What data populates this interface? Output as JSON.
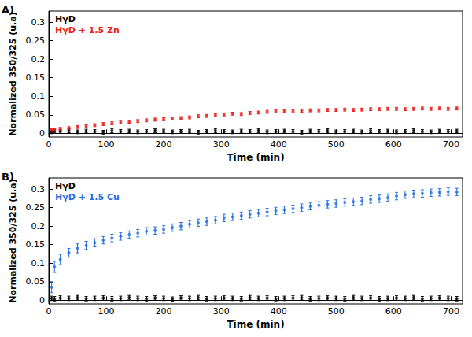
{
  "chart_data": [
    {
      "type": "scatter",
      "title": "A)",
      "x_label": "Time (min)",
      "y_label": "Normalized 350/325 (u.a)",
      "xlim": [
        0,
        720
      ],
      "xticks": [
        0,
        100,
        200,
        300,
        400,
        500,
        600,
        700
      ],
      "ylim": [
        -0.01,
        0.33
      ],
      "yticks": [
        0,
        0.05,
        0.1,
        0.15,
        0.2,
        0.25,
        0.3
      ],
      "grid": false,
      "legend": "upper left",
      "x": [
        5,
        10,
        20,
        35,
        50,
        65,
        80,
        95,
        110,
        125,
        140,
        155,
        170,
        185,
        200,
        215,
        230,
        245,
        260,
        275,
        290,
        305,
        320,
        335,
        350,
        365,
        380,
        395,
        410,
        425,
        440,
        455,
        470,
        485,
        500,
        515,
        530,
        545,
        560,
        575,
        590,
        605,
        620,
        635,
        650,
        665,
        680,
        695,
        710
      ],
      "series": [
        {
          "name": "HγD",
          "color": "#000000",
          "marker": "circle",
          "values": [
            0.004,
            0.006,
            0.005,
            0.007,
            0.004,
            0.006,
            0.005,
            0.003,
            0.007,
            0.005,
            0.006,
            0.004,
            0.005,
            0.007,
            0.006,
            0.004,
            0.005,
            0.006,
            0.003,
            0.005,
            0.007,
            0.005,
            0.004,
            0.006,
            0.005,
            0.007,
            0.004,
            0.005,
            0.006,
            0.005,
            0.003,
            0.006,
            0.005,
            0.007,
            0.004,
            0.005,
            0.006,
            0.004,
            0.007,
            0.005,
            0.006,
            0.004,
            0.005,
            0.007,
            0.005,
            0.004,
            0.006,
            0.005,
            0.006
          ],
          "errors": [
            0.005,
            0.005,
            0.005,
            0.005,
            0.005,
            0.005,
            0.005,
            0.005,
            0.005,
            0.005,
            0.005,
            0.005,
            0.005,
            0.005,
            0.005,
            0.005,
            0.005,
            0.005,
            0.005,
            0.005,
            0.005,
            0.005,
            0.005,
            0.005,
            0.005,
            0.005,
            0.005,
            0.005,
            0.005,
            0.005,
            0.005,
            0.005,
            0.005,
            0.005,
            0.005,
            0.005,
            0.005,
            0.005,
            0.005,
            0.005,
            0.005,
            0.005,
            0.005,
            0.005,
            0.005,
            0.005,
            0.005,
            0.005,
            0.005
          ]
        },
        {
          "name": "HγD + 1.5 Zn",
          "color": "#e8231e",
          "marker": "circle",
          "values": [
            0.008,
            0.009,
            0.012,
            0.014,
            0.017,
            0.019,
            0.022,
            0.025,
            0.027,
            0.029,
            0.031,
            0.033,
            0.035,
            0.037,
            0.038,
            0.04,
            0.041,
            0.043,
            0.046,
            0.047,
            0.049,
            0.051,
            0.053,
            0.052,
            0.055,
            0.056,
            0.058,
            0.059,
            0.06,
            0.06,
            0.061,
            0.062,
            0.062,
            0.063,
            0.063,
            0.064,
            0.063,
            0.064,
            0.065,
            0.065,
            0.066,
            0.066,
            0.065,
            0.066,
            0.067,
            0.066,
            0.067,
            0.066,
            0.067
          ],
          "errors": [
            0.004,
            0.004,
            0.004,
            0.004,
            0.004,
            0.004,
            0.004,
            0.004,
            0.004,
            0.004,
            0.004,
            0.004,
            0.004,
            0.004,
            0.004,
            0.004,
            0.004,
            0.004,
            0.004,
            0.004,
            0.004,
            0.004,
            0.004,
            0.004,
            0.004,
            0.004,
            0.004,
            0.004,
            0.004,
            0.004,
            0.004,
            0.004,
            0.004,
            0.004,
            0.004,
            0.004,
            0.004,
            0.004,
            0.004,
            0.004,
            0.004,
            0.004,
            0.004,
            0.004,
            0.004,
            0.004,
            0.004,
            0.004,
            0.004
          ]
        }
      ]
    },
    {
      "type": "scatter",
      "title": "B)",
      "x_label": "Time (min)",
      "y_label": "Normalized 350/325 (u.a)",
      "xlim": [
        0,
        720
      ],
      "xticks": [
        0,
        100,
        200,
        300,
        400,
        500,
        600,
        700
      ],
      "ylim": [
        -0.01,
        0.33
      ],
      "yticks": [
        0,
        0.05,
        0.1,
        0.15,
        0.2,
        0.25,
        0.3
      ],
      "grid": false,
      "legend": "upper left",
      "x": [
        5,
        10,
        20,
        35,
        50,
        65,
        80,
        95,
        110,
        125,
        140,
        155,
        170,
        185,
        200,
        215,
        230,
        245,
        260,
        275,
        290,
        305,
        320,
        335,
        350,
        365,
        380,
        395,
        410,
        425,
        440,
        455,
        470,
        485,
        500,
        515,
        530,
        545,
        560,
        575,
        590,
        605,
        620,
        635,
        650,
        665,
        680,
        695,
        710
      ],
      "series": [
        {
          "name": "HγD",
          "color": "#000000",
          "marker": "circle",
          "values": [
            0.005,
            0.004,
            0.006,
            0.005,
            0.007,
            0.004,
            0.005,
            0.006,
            0.004,
            0.005,
            0.007,
            0.005,
            0.004,
            0.006,
            0.005,
            0.003,
            0.006,
            0.005,
            0.007,
            0.004,
            0.005,
            0.006,
            0.005,
            0.004,
            0.007,
            0.005,
            0.006,
            0.004,
            0.005,
            0.006,
            0.007,
            0.004,
            0.005,
            0.006,
            0.005,
            0.004,
            0.007,
            0.005,
            0.006,
            0.004,
            0.005,
            0.006,
            0.005,
            0.007,
            0.004,
            0.005,
            0.006,
            0.005,
            0.004
          ],
          "errors": [
            0.006,
            0.006,
            0.006,
            0.006,
            0.006,
            0.006,
            0.006,
            0.006,
            0.006,
            0.006,
            0.006,
            0.006,
            0.006,
            0.006,
            0.006,
            0.006,
            0.006,
            0.006,
            0.006,
            0.006,
            0.006,
            0.006,
            0.006,
            0.006,
            0.006,
            0.006,
            0.006,
            0.006,
            0.006,
            0.006,
            0.006,
            0.006,
            0.006,
            0.006,
            0.006,
            0.006,
            0.006,
            0.006,
            0.006,
            0.006,
            0.006,
            0.006,
            0.006,
            0.006,
            0.006,
            0.006,
            0.006,
            0.006,
            0.006
          ]
        },
        {
          "name": "HγD + 1.5 Cu",
          "color": "#1f6fe0",
          "marker": "circle",
          "values": [
            0.035,
            0.09,
            0.11,
            0.128,
            0.14,
            0.148,
            0.155,
            0.162,
            0.168,
            0.172,
            0.177,
            0.181,
            0.186,
            0.188,
            0.191,
            0.196,
            0.2,
            0.205,
            0.209,
            0.212,
            0.216,
            0.222,
            0.225,
            0.228,
            0.232,
            0.235,
            0.238,
            0.241,
            0.244,
            0.247,
            0.25,
            0.254,
            0.256,
            0.259,
            0.261,
            0.264,
            0.266,
            0.268,
            0.272,
            0.274,
            0.277,
            0.281,
            0.285,
            0.287,
            0.288,
            0.29,
            0.291,
            0.293,
            0.292
          ],
          "errors": [
            0.015,
            0.015,
            0.014,
            0.012,
            0.012,
            0.011,
            0.011,
            0.01,
            0.01,
            0.01,
            0.01,
            0.01,
            0.01,
            0.01,
            0.01,
            0.01,
            0.01,
            0.01,
            0.01,
            0.01,
            0.01,
            0.01,
            0.01,
            0.01,
            0.01,
            0.01,
            0.01,
            0.01,
            0.01,
            0.01,
            0.01,
            0.01,
            0.01,
            0.01,
            0.01,
            0.01,
            0.01,
            0.01,
            0.01,
            0.01,
            0.01,
            0.01,
            0.01,
            0.01,
            0.01,
            0.01,
            0.01,
            0.01,
            0.01
          ]
        }
      ]
    }
  ]
}
